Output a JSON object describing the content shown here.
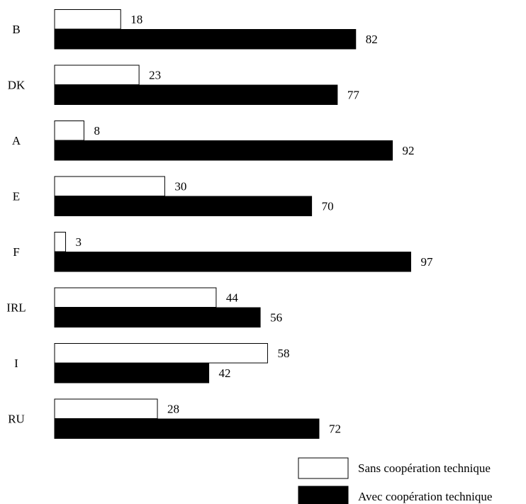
{
  "chart_data": {
    "type": "bar",
    "orientation": "horizontal",
    "categories": [
      "B",
      "DK",
      "A",
      "E",
      "F",
      "IRL",
      "I",
      "RU"
    ],
    "series": [
      {
        "name": "Sans coopération technique",
        "values": [
          18,
          23,
          8,
          30,
          3,
          44,
          58,
          28
        ],
        "color": "#ffffff",
        "border": "#000000"
      },
      {
        "name": "Avec coopération technique",
        "values": [
          82,
          77,
          92,
          70,
          97,
          56,
          42,
          72
        ],
        "color": "#000000",
        "border": "#000000"
      }
    ],
    "xlim": [
      0,
      100
    ],
    "grid": false,
    "data_labels": true,
    "legend_position": "bottom-right"
  }
}
